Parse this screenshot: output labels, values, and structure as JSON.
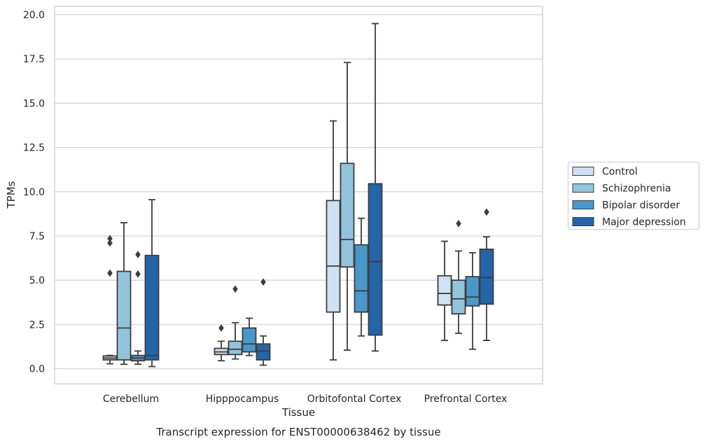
{
  "chart_data": {
    "type": "boxplot",
    "xlabel": "Tissue",
    "ylabel": "TPMs",
    "caption": "Transcript expression for ENST00000638462 by tissue",
    "ylim": [
      -0.8,
      20.4
    ],
    "yticks": [
      "0.0",
      "2.5",
      "5.0",
      "7.5",
      "10.0",
      "12.5",
      "15.0",
      "17.5",
      "20.0"
    ],
    "ytick_values": [
      0,
      2.5,
      5,
      7.5,
      10,
      12.5,
      15,
      17.5,
      20
    ],
    "grid": "horizontal",
    "legend_position": "right",
    "categories": [
      "Cerebellum",
      "Hipppocampus",
      "Orbitofontal Cortex",
      "Prefrontal Cortex"
    ],
    "series": [
      {
        "name": "Control",
        "color": "#cfe1f2",
        "boxes": [
          {
            "whislo": 0.28,
            "q1": 0.5,
            "med": 0.6,
            "q3": 0.72,
            "whishi": 0.75,
            "fliers": [
              5.4,
              7.1,
              7.35
            ]
          },
          {
            "whislo": 0.45,
            "q1": 0.8,
            "med": 0.95,
            "q3": 1.15,
            "whishi": 1.55,
            "fliers": [
              2.3
            ]
          },
          {
            "whislo": 0.5,
            "q1": 3.2,
            "med": 5.8,
            "q3": 9.5,
            "whishi": 14.0,
            "fliers": []
          },
          {
            "whislo": 1.6,
            "q1": 3.6,
            "med": 4.25,
            "q3": 5.25,
            "whishi": 7.2,
            "fliers": []
          }
        ]
      },
      {
        "name": "Schizophrenia",
        "color": "#93c4de",
        "boxes": [
          {
            "whislo": 0.25,
            "q1": 0.5,
            "med": 2.3,
            "q3": 5.5,
            "whishi": 8.25,
            "fliers": []
          },
          {
            "whislo": 0.55,
            "q1": 0.8,
            "med": 1.1,
            "q3": 1.55,
            "whishi": 2.6,
            "fliers": [
              4.5
            ]
          },
          {
            "whislo": 1.05,
            "q1": 5.75,
            "med": 7.3,
            "q3": 11.6,
            "whishi": 17.3,
            "fliers": []
          },
          {
            "whislo": 2.0,
            "q1": 3.1,
            "med": 3.95,
            "q3": 5.0,
            "whishi": 6.65,
            "fliers": [
              8.2
            ]
          }
        ]
      },
      {
        "name": "Bipolar disorder",
        "color": "#4a98c9",
        "boxes": [
          {
            "whislo": 0.25,
            "q1": 0.45,
            "med": 0.6,
            "q3": 0.75,
            "whishi": 1.0,
            "fliers": [
              5.35,
              6.45
            ]
          },
          {
            "whislo": 0.75,
            "q1": 0.95,
            "med": 1.4,
            "q3": 2.3,
            "whishi": 2.85,
            "fliers": []
          },
          {
            "whislo": 1.85,
            "q1": 3.2,
            "med": 4.4,
            "q3": 7.0,
            "whishi": 8.5,
            "fliers": []
          },
          {
            "whislo": 1.1,
            "q1": 3.55,
            "med": 4.05,
            "q3": 5.2,
            "whishi": 6.55,
            "fliers": []
          }
        ]
      },
      {
        "name": "Major depression",
        "color": "#2464a9",
        "boxes": [
          {
            "whislo": 0.12,
            "q1": 0.5,
            "med": 0.75,
            "q3": 6.4,
            "whishi": 9.55,
            "fliers": []
          },
          {
            "whislo": 0.2,
            "q1": 0.5,
            "med": 1.0,
            "q3": 1.4,
            "whishi": 1.85,
            "fliers": [
              4.9
            ]
          },
          {
            "whislo": 1.0,
            "q1": 1.9,
            "med": 6.05,
            "q3": 10.45,
            "whishi": 19.5,
            "fliers": []
          },
          {
            "whislo": 1.6,
            "q1": 3.65,
            "med": 5.15,
            "q3": 6.75,
            "whishi": 7.45,
            "fliers": [
              8.85
            ]
          }
        ]
      }
    ]
  }
}
